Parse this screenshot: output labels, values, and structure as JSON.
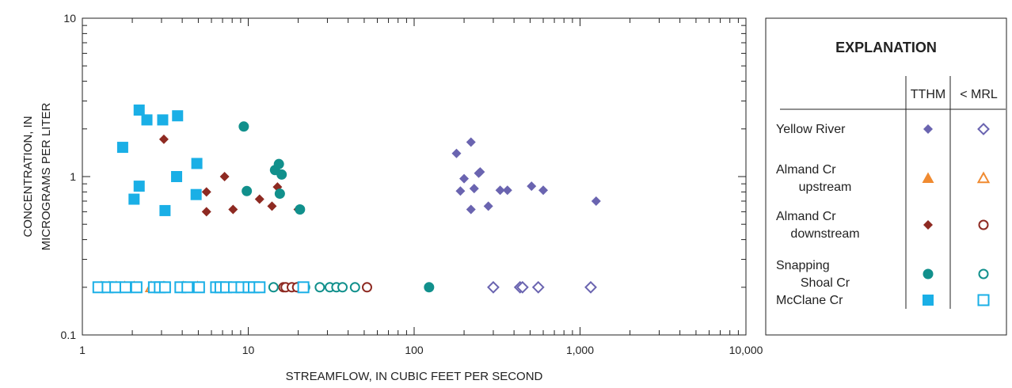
{
  "chart_data": {
    "type": "scatter",
    "xlabel": "STREAMFLOW, IN CUBIC FEET PER SECOND",
    "ylabel_lines": [
      "CONCENTRATION, IN",
      "MICROGRAMS PER LITER"
    ],
    "x_scale": "log",
    "y_scale": "log",
    "xlim": [
      1,
      10000
    ],
    "ylim": [
      0.1,
      10
    ],
    "x_ticks": [
      {
        "value": 1,
        "label": "1"
      },
      {
        "value": 10,
        "label": "10"
      },
      {
        "value": 100,
        "label": "100"
      },
      {
        "value": 1000,
        "label": "1,000"
      },
      {
        "value": 10000,
        "label": "10,000"
      }
    ],
    "y_ticks": [
      {
        "value": 0.1,
        "label": "0.1"
      },
      {
        "value": 1,
        "label": "1"
      },
      {
        "value": 10,
        "label": "10"
      }
    ],
    "grid": false,
    "legend": {
      "title": "EXPLANATION",
      "placement": "right",
      "col_tthm": "TTHM",
      "col_mrl": "< MRL",
      "rows": [
        {
          "lines": [
            "Yellow River"
          ],
          "shape": "diamond",
          "color": "#6A64B0"
        },
        {
          "lines": [
            "Almand Cr",
            "upstream"
          ],
          "shape": "triangle",
          "color": "#F08A30"
        },
        {
          "lines": [
            "Almand Cr",
            "downstream"
          ],
          "shape": "diamond",
          "color": "#8E2A22",
          "mrl_shape": "circle"
        },
        {
          "lines": [
            "Snapping",
            "Shoal Cr"
          ],
          "shape": "circle",
          "color": "#11908C"
        },
        {
          "lines": [
            "McClane Cr"
          ],
          "shape": "square",
          "color": "#1AAFE6"
        }
      ]
    },
    "series": [
      {
        "name": "Yellow River",
        "kind": "TTHM",
        "shape": "diamond",
        "color": "#6A64B0",
        "filled": true,
        "points": [
          [
            180,
            1.4
          ],
          [
            200,
            0.97
          ],
          [
            220,
            1.65
          ],
          [
            190,
            0.81
          ],
          [
            230,
            0.84
          ],
          [
            250,
            1.07
          ],
          [
            245,
            1.05
          ],
          [
            220,
            0.62
          ],
          [
            280,
            0.65
          ],
          [
            330,
            0.82
          ],
          [
            365,
            0.82
          ],
          [
            510,
            0.87
          ],
          [
            600,
            0.82
          ],
          [
            1250,
            0.7
          ]
        ]
      },
      {
        "name": "Yellow River",
        "kind": "< MRL",
        "shape": "diamond",
        "color": "#6A64B0",
        "filled": false,
        "points": [
          [
            300,
            0.2
          ],
          [
            435,
            0.2
          ],
          [
            450,
            0.2
          ],
          [
            560,
            0.2
          ],
          [
            1160,
            0.2
          ]
        ]
      },
      {
        "name": "Almand Cr downstream",
        "kind": "TTHM",
        "shape": "diamond",
        "color": "#8E2A22",
        "filled": true,
        "points": [
          [
            3.1,
            1.72
          ],
          [
            5.6,
            0.8
          ],
          [
            5.6,
            0.6
          ],
          [
            7.2,
            1.0
          ],
          [
            8.1,
            0.62
          ],
          [
            11.7,
            0.72
          ],
          [
            13.9,
            0.65
          ],
          [
            15,
            0.86
          ],
          [
            20,
            0.62
          ]
        ]
      },
      {
        "name": "Almand Cr downstream",
        "kind": "< MRL",
        "shape": "circle",
        "color": "#8E2A22",
        "filled": false,
        "points": [
          [
            6.5,
            0.2
          ],
          [
            7.7,
            0.2
          ],
          [
            8.8,
            0.2
          ],
          [
            10.6,
            0.2
          ],
          [
            11.6,
            0.2
          ],
          [
            16.3,
            0.2
          ],
          [
            16.8,
            0.2
          ],
          [
            18.3,
            0.2
          ],
          [
            19.7,
            0.2
          ],
          [
            52,
            0.2
          ]
        ]
      },
      {
        "name": "Almand Cr upstream",
        "kind": "< MRL",
        "shape": "triangle",
        "color": "#F08A30",
        "filled": false,
        "points": [
          [
            1.3,
            0.2
          ],
          [
            1.45,
            0.2
          ],
          [
            1.6,
            0.2
          ],
          [
            1.8,
            0.2
          ],
          [
            2.05,
            0.2
          ],
          [
            2.6,
            0.2
          ],
          [
            3.1,
            0.2
          ],
          [
            4.05,
            0.2
          ],
          [
            4.95,
            0.2
          ]
        ]
      },
      {
        "name": "Snapping Shoal Cr",
        "kind": "TTHM",
        "shape": "circle",
        "color": "#11908C",
        "filled": true,
        "points": [
          [
            9.4,
            2.07
          ],
          [
            9.8,
            0.81
          ],
          [
            14.5,
            1.1
          ],
          [
            15.3,
            1.2
          ],
          [
            15.9,
            1.03
          ],
          [
            15.5,
            0.78
          ],
          [
            20.5,
            0.62
          ],
          [
            123,
            0.2
          ]
        ]
      },
      {
        "name": "Snapping Shoal Cr",
        "kind": "< MRL",
        "shape": "circle",
        "color": "#11908C",
        "filled": false,
        "points": [
          [
            14.2,
            0.2
          ],
          [
            22,
            0.2
          ],
          [
            27,
            0.2
          ],
          [
            31,
            0.2
          ],
          [
            34,
            0.2
          ],
          [
            37,
            0.2
          ],
          [
            44,
            0.2
          ]
        ]
      },
      {
        "name": "McClane Cr",
        "kind": "TTHM",
        "shape": "square",
        "color": "#1AAFE6",
        "filled": true,
        "points": [
          [
            2.2,
            2.63
          ],
          [
            2.45,
            2.28
          ],
          [
            3.05,
            2.28
          ],
          [
            3.75,
            2.42
          ],
          [
            1.75,
            1.53
          ],
          [
            4.9,
            1.21
          ],
          [
            3.7,
            1.0
          ],
          [
            2.2,
            0.87
          ],
          [
            2.05,
            0.72
          ],
          [
            4.85,
            0.77
          ],
          [
            3.15,
            0.61
          ]
        ]
      },
      {
        "name": "McClane Cr",
        "kind": "< MRL",
        "shape": "square",
        "color": "#1AAFE6",
        "filled": false,
        "points": [
          [
            1.25,
            0.2
          ],
          [
            1.42,
            0.2
          ],
          [
            1.58,
            0.2
          ],
          [
            1.82,
            0.2
          ],
          [
            2.12,
            0.2
          ],
          [
            2.7,
            0.2
          ],
          [
            2.93,
            0.2
          ],
          [
            3.15,
            0.2
          ],
          [
            3.9,
            0.2
          ],
          [
            4.3,
            0.2
          ],
          [
            5.05,
            0.2
          ],
          [
            6.4,
            0.2
          ],
          [
            6.8,
            0.2
          ],
          [
            7.35,
            0.2
          ],
          [
            8.2,
            0.2
          ],
          [
            9.1,
            0.2
          ],
          [
            10.05,
            0.2
          ],
          [
            10.8,
            0.2
          ],
          [
            11.7,
            0.2
          ],
          [
            21.5,
            0.2
          ]
        ]
      }
    ]
  }
}
